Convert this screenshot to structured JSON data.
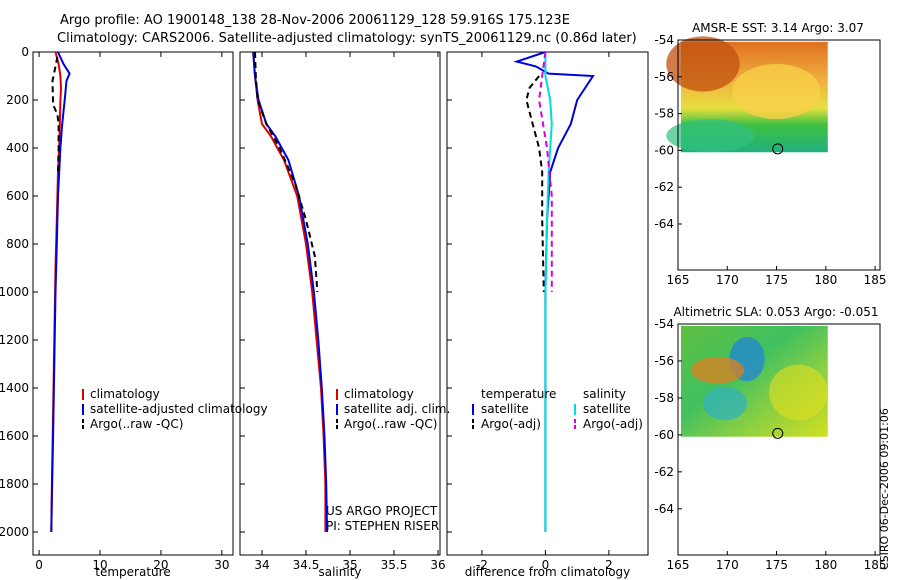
{
  "header": {
    "line1": "Argo profile: AO 1900148_138 28-Nov-2006 20061129_128 59.916S 175.123E",
    "line2": "Climatology: CARS2006. Satellite-adjusted climatology: synTS_20061129.nc (0.86d later)"
  },
  "side_label": "CSIRO 06-Dec-2006 09:01:06",
  "chart_data": [
    {
      "id": "temperature",
      "type": "line",
      "xlabel": "temperature",
      "ylabel": "",
      "xlim": [
        -1,
        31.5
      ],
      "ylim": [
        2000,
        0
      ],
      "xticks": [
        0,
        10,
        20,
        30
      ],
      "yticks": [
        0,
        200,
        400,
        600,
        800,
        1000,
        1200,
        1400,
        1600,
        1800,
        2000
      ],
      "legend": [
        "climatology",
        "satellite-adjusted climatology",
        "Argo(..raw -QC)"
      ],
      "legend_position": "lower-middle",
      "series": [
        {
          "name": "climatology",
          "color": "#dd0000",
          "dash": "solid",
          "x": [
            2.7,
            3.2,
            3.5,
            3.6,
            3.5,
            3.4,
            3.3,
            3.1,
            2.9,
            2.7,
            2.5,
            2.3,
            2.1,
            2.0
          ],
          "y": [
            0,
            50,
            100,
            150,
            200,
            300,
            400,
            500,
            700,
            900,
            1200,
            1500,
            1800,
            2000
          ]
        },
        {
          "name": "satellite-adjusted climatology",
          "color": "#0000dd",
          "dash": "solid",
          "x": [
            3.1,
            4.0,
            5.0,
            4.5,
            4.2,
            3.8,
            3.5,
            3.3,
            3.1,
            2.9,
            2.7,
            2.5,
            2.3,
            2.1,
            2.0
          ],
          "y": [
            0,
            50,
            90,
            120,
            200,
            300,
            400,
            500,
            600,
            800,
            1000,
            1300,
            1600,
            1850,
            2000
          ]
        },
        {
          "name": "Argo(..raw -QC)",
          "color": "#000000",
          "dash": "dashed",
          "x": [
            3.0,
            2.7,
            2.2,
            2.3,
            3.0,
            3.2,
            3.2,
            3.1
          ],
          "y": [
            20,
            60,
            120,
            220,
            260,
            300,
            400,
            500
          ]
        }
      ]
    },
    {
      "id": "salinity",
      "type": "line",
      "xlabel": "salinity",
      "ylabel": "",
      "xlim": [
        33.75,
        36.0
      ],
      "ylim": [
        2000,
        0
      ],
      "xticks": [
        34,
        34.5,
        35,
        35.5,
        36
      ],
      "legend": [
        "climatology",
        "satellite adj. clim.",
        "Argo(..raw -QC)"
      ],
      "legend_position": "lower-middle",
      "annotations": [
        "US ARGO PROJECT",
        "PI: STEPHEN RISER"
      ],
      "series": [
        {
          "name": "climatology",
          "color": "#dd0000",
          "dash": "solid",
          "x": [
            33.9,
            33.92,
            33.95,
            34.0,
            34.1,
            34.25,
            34.4,
            34.5,
            34.57,
            34.62,
            34.67,
            34.7,
            34.72,
            34.72
          ],
          "y": [
            0,
            100,
            200,
            300,
            350,
            450,
            600,
            800,
            1000,
            1200,
            1400,
            1600,
            1800,
            2000
          ]
        },
        {
          "name": "satellite adj. clim.",
          "color": "#0000dd",
          "dash": "solid",
          "x": [
            33.9,
            33.92,
            33.96,
            34.05,
            34.15,
            34.3,
            34.42,
            34.52,
            34.59,
            34.64,
            34.68,
            34.71,
            34.73,
            34.74
          ],
          "y": [
            0,
            100,
            200,
            300,
            350,
            450,
            600,
            800,
            1000,
            1200,
            1400,
            1600,
            1800,
            2000
          ]
        },
        {
          "name": "Argo(..raw -QC)",
          "color": "#000000",
          "dash": "dashed",
          "x": [
            33.92,
            33.93,
            33.95,
            34.05,
            34.2,
            34.38,
            34.5,
            34.6,
            34.63
          ],
          "y": [
            0,
            100,
            200,
            300,
            400,
            550,
            700,
            850,
            1000
          ]
        }
      ]
    },
    {
      "id": "difference",
      "type": "line",
      "xlabel": "difference from climatology",
      "ylabel": "",
      "xlim": [
        -3.1,
        3.2
      ],
      "ylim": [
        2000,
        0
      ],
      "xticks": [
        -2,
        0,
        2
      ],
      "legend_titles": [
        "temperature",
        "salinity"
      ],
      "legend": [
        "satellite",
        "Argo(-adj)",
        "satellite",
        "Argo(-adj)"
      ],
      "legend_position": "lower-middle",
      "series": [
        {
          "name": "satellite",
          "group": "temperature",
          "color": "#0000dd",
          "dash": "solid",
          "x": [
            0.0,
            -0.9,
            -0.3,
            0.1,
            1.5,
            1.0,
            0.8,
            0.4,
            0.15,
            0.05,
            0.0,
            0.0
          ],
          "y": [
            0,
            40,
            60,
            90,
            100,
            200,
            300,
            400,
            500,
            700,
            1000,
            2000
          ]
        },
        {
          "name": "Argo(-adj)",
          "group": "temperature",
          "color": "#000000",
          "dash": "dashed",
          "x": [
            -0.2,
            -0.5,
            -0.6,
            -0.4,
            -0.2,
            -0.1,
            -0.1,
            -0.05
          ],
          "y": [
            100,
            150,
            200,
            300,
            400,
            500,
            700,
            1000
          ]
        },
        {
          "name": "satellite",
          "group": "salinity",
          "color": "#00dddd",
          "dash": "solid",
          "x": [
            0.0,
            0.0,
            0.15,
            0.2,
            0.1,
            0.05,
            0.0,
            0.0
          ],
          "y": [
            0,
            100,
            200,
            300,
            500,
            700,
            1000,
            2000
          ]
        },
        {
          "name": "Argo(-adj)",
          "group": "salinity",
          "color": "#dd00dd",
          "dash": "dashed",
          "x": [
            0.0,
            -0.1,
            -0.2,
            0.05,
            0.2,
            0.2,
            0.2
          ],
          "y": [
            0,
            100,
            200,
            400,
            600,
            800,
            1000
          ]
        }
      ]
    },
    {
      "id": "sst_map",
      "type": "heatmap",
      "title": "AMSR-E SST: 3.14 Argo: 3.07",
      "xlim": [
        165,
        185.5
      ],
      "ylim": [
        -66.5,
        -54
      ],
      "xticks": [
        165,
        170,
        175,
        180,
        185
      ],
      "yticks": [
        -54,
        -56,
        -58,
        -60,
        -62,
        -64
      ],
      "data_extent": {
        "x": [
          165.3,
          180.2
        ],
        "y": [
          -60.1,
          -54.1
        ]
      },
      "marker": {
        "lon": 175.123,
        "lat": -59.916
      }
    },
    {
      "id": "sla_map",
      "type": "heatmap",
      "title": "Altimetric SLA: 0.053 Argo: -0.051",
      "xlim": [
        165,
        185.5
      ],
      "ylim": [
        -66.5,
        -54
      ],
      "xticks": [
        165,
        170,
        175,
        180,
        185
      ],
      "yticks": [
        -54,
        -56,
        -58,
        -60,
        -62,
        -64
      ],
      "data_extent": {
        "x": [
          165.3,
          180.2
        ],
        "y": [
          -60.1,
          -54.1
        ]
      },
      "marker": {
        "lon": 175.123,
        "lat": -59.916
      }
    }
  ]
}
